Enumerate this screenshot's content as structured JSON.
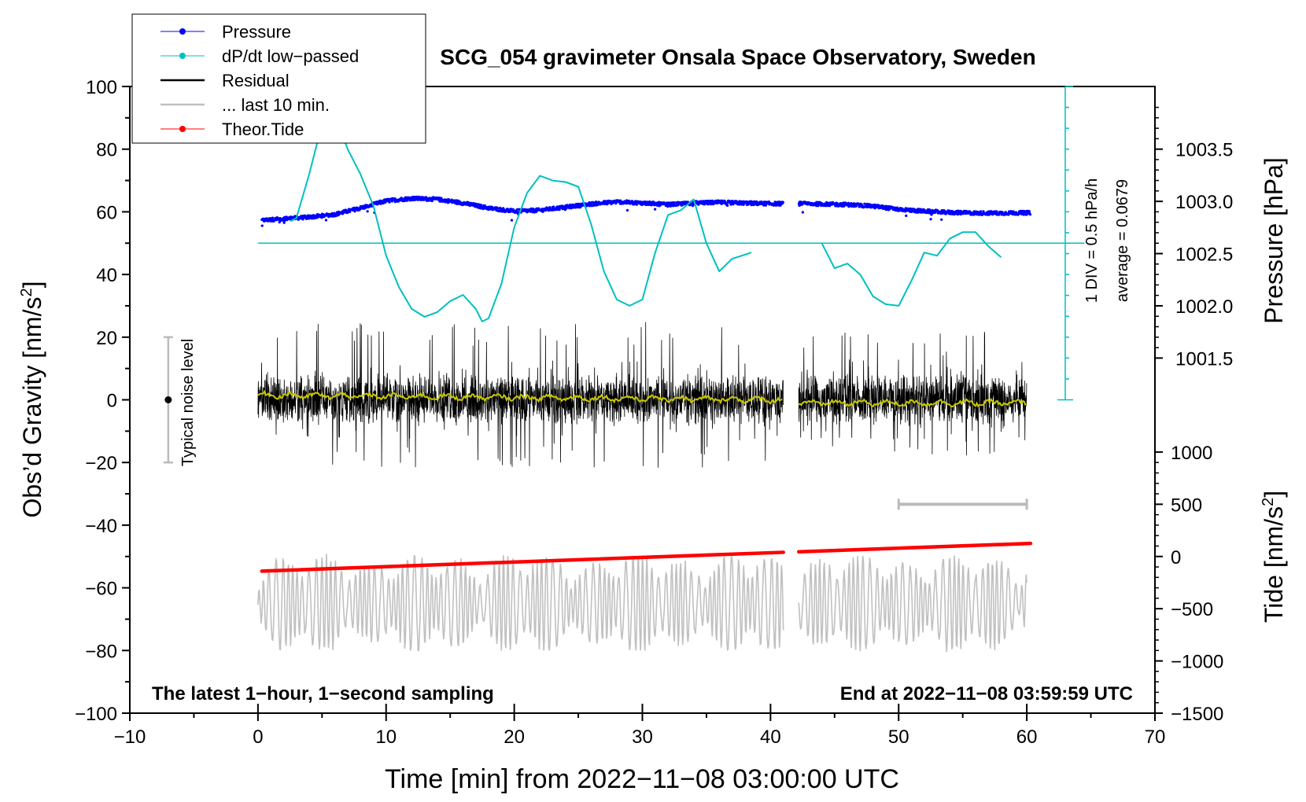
{
  "chart_data": {
    "type": "line",
    "title": "SCG_054 gravimeter Onsala Space Observatory, Sweden",
    "xlabel": "Time [min] from 2022−11−08 03:00:00 UTC",
    "ylabel_left": "Obs’d Gravity [nm/s",
    "ylabel_right_top": "Pressure [hPa]",
    "ylabel_right_bottom": "Tide [nm/s",
    "superscript": "2",
    "ylabel_close": "]",
    "xlim": [
      -10,
      70
    ],
    "ylim": [
      -100,
      100
    ],
    "x_ticks": [
      "−10",
      "0",
      "10",
      "20",
      "30",
      "40",
      "50",
      "60",
      "70"
    ],
    "y_ticks": [
      "100",
      "80",
      "60",
      "40",
      "20",
      "0",
      "−20",
      "−40",
      "−60",
      "−80",
      "−100"
    ],
    "pressure_ticks": [
      "1003.5",
      "1003.0",
      "1002.5",
      "1002.0",
      "1001.5"
    ],
    "tide_ticks": [
      "1000",
      "500",
      "0",
      "−500",
      "−1000",
      "−1500"
    ],
    "legend": [
      {
        "label": "Pressure",
        "color": "#0000ff",
        "marker": true
      },
      {
        "label": "dP/dt low−passed",
        "color": "#00c0c0",
        "marker": true
      },
      {
        "label": "Residual",
        "color": "#000000",
        "marker": false
      },
      {
        "label": "... last 10 min.",
        "color": "#c0c0c0",
        "marker": false
      },
      {
        "label": "Theor.Tide",
        "color": "#ff0000",
        "marker": true
      }
    ],
    "annotations": {
      "noise": "Typical noise level",
      "div": "1 DIV = 0.5 hPa/h",
      "average": "average = 0.0679",
      "bottom_left": "The latest 1−hour, 1−second sampling",
      "bottom_right": "End at 2022−11−08 03:59:59 UTC"
    },
    "colors": {
      "pressure": "#0000ff",
      "dpdt": "#00c0c0",
      "residual": "#000000",
      "smoothed": "#c8c800",
      "last10": "#c0c0c0",
      "tide": "#ff0000"
    },
    "series": [
      {
        "name": "Pressure (plotted on gravity-axis units)",
        "x": [
          0.3,
          2,
          4,
          6,
          8,
          10,
          12,
          14,
          16,
          18,
          20,
          22,
          24,
          26,
          28,
          30,
          32,
          34,
          36,
          38,
          40,
          41,
          42.2,
          44,
          46,
          48,
          50,
          52,
          54,
          56,
          58,
          60.3
        ],
        "y": [
          57.3,
          57.8,
          58.3,
          59.2,
          61.2,
          63.5,
          64.3,
          64.0,
          62.8,
          61.2,
          60.2,
          60.5,
          61.5,
          62.5,
          63.2,
          62.8,
          62.3,
          62.8,
          63.0,
          62.8,
          62.6,
          62.6,
          62.6,
          62.5,
          62.3,
          61.8,
          60.8,
          60.2,
          59.8,
          59.6,
          59.6,
          59.7
        ]
      },
      {
        "name": "dP/dt low-passed",
        "segments": [
          {
            "x": [
              2.5,
              3,
              4,
              5,
              5.5,
              6,
              7,
              8,
              9,
              10,
              11,
              12,
              13,
              14,
              15,
              16,
              17,
              17.5,
              18,
              19,
              20,
              21,
              22,
              23,
              24,
              25,
              26,
              27,
              28,
              29,
              30,
              31,
              32,
              33,
              34,
              35,
              36,
              37,
              38.5
            ],
            "y": [
              57,
              58,
              72,
              88,
              96,
              91,
              80,
              72,
              62,
              46,
              36,
              29,
              26.5,
              28,
              31.5,
              33.5,
              29,
              25,
              26,
              37,
              55,
              66,
              71.5,
              70,
              69.5,
              68,
              56,
              41,
              32,
              30,
              32,
              47,
              59,
              60.5,
              64,
              50,
              41,
              45,
              47
            ]
          },
          {
            "x": [
              44,
              45,
              46,
              47,
              48,
              49,
              50,
              51,
              52,
              53,
              54,
              55,
              56,
              57,
              58
            ],
            "y": [
              50,
              42,
              43.5,
              40,
              33,
              30.5,
              30,
              38,
              47,
              46,
              51.5,
              53.5,
              53.5,
              49,
              45.5
            ]
          }
        ],
        "zero_line": 50
      },
      {
        "name": "Residual",
        "segments": [
          {
            "x": [
              0,
              41
            ],
            "y_range": [
              -22,
              25
            ],
            "y_mean": 0
          },
          {
            "x": [
              42.2,
              60
            ],
            "y_range": [
              -20,
              22
            ],
            "y_mean": 0
          }
        ]
      },
      {
        "name": "Residual smoothed",
        "segments": [
          {
            "x": [
              0,
              41
            ],
            "y": [
              1.5,
              0
            ]
          },
          {
            "x": [
              42.2,
              60
            ],
            "y": [
              -1,
              -1
            ]
          }
        ]
      },
      {
        "name": "... last 10 min.",
        "segments": [
          {
            "x": [
              0,
              41
            ],
            "y_center": -65,
            "y_range": [
              -80,
              -47
            ]
          },
          {
            "x": [
              42.2,
              60
            ],
            "y_center": -65,
            "y_range": [
              -81,
              -46
            ]
          }
        ]
      },
      {
        "name": "Theor.Tide (nm/s2)",
        "segments": [
          {
            "x": [
              0.3,
              41
            ],
            "y": [
              -140,
              40
            ]
          },
          {
            "x": [
              42.2,
              60.3
            ],
            "y": [
              45,
              125
            ]
          }
        ]
      }
    ],
    "noise_bar": {
      "x": -7,
      "y_low": -20,
      "y_high": 20
    },
    "last10_bracket": {
      "x_start": 50,
      "x_end": 60,
      "tide_value": 500
    },
    "dpdt_scale_ticks": 15
  }
}
